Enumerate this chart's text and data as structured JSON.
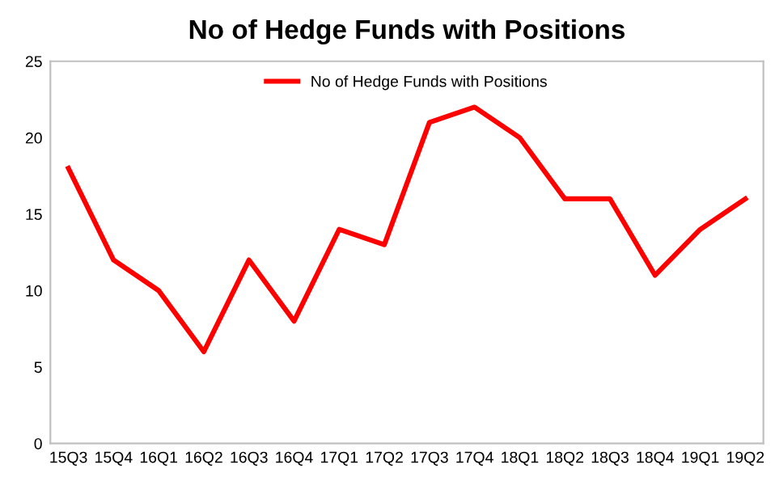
{
  "chart_data": {
    "type": "line",
    "title": "No of Hedge Funds with Positions",
    "categories": [
      "15Q3",
      "15Q4",
      "16Q1",
      "16Q2",
      "16Q3",
      "16Q4",
      "17Q1",
      "17Q2",
      "17Q3",
      "17Q4",
      "18Q1",
      "18Q2",
      "18Q3",
      "18Q4",
      "19Q1",
      "19Q2"
    ],
    "series": [
      {
        "name": "No of Hedge Funds with Positions",
        "color": "#ff0000",
        "values": [
          18,
          12,
          10,
          6,
          12,
          8,
          14,
          13,
          21,
          22,
          20,
          16,
          16,
          11,
          14,
          16
        ]
      }
    ],
    "ylim": [
      0,
      25
    ],
    "yticks": [
      0,
      5,
      10,
      15,
      20,
      25
    ],
    "legend": "top",
    "grid": false,
    "marker": "none",
    "line_style": "solid"
  }
}
